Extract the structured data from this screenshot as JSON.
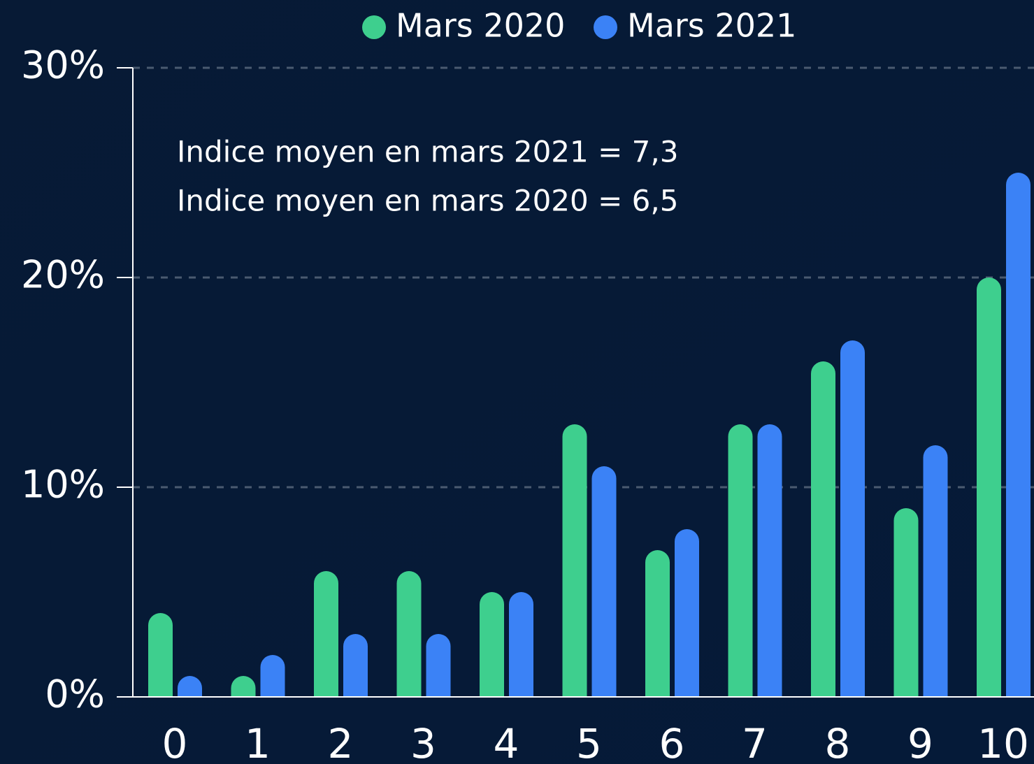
{
  "chart_data": {
    "type": "bar",
    "categories": [
      "0",
      "1",
      "2",
      "3",
      "4",
      "5",
      "6",
      "7",
      "8",
      "9",
      "10"
    ],
    "series": [
      {
        "name": "Mars 2020",
        "color": "#3ecf8e",
        "values": [
          4,
          1,
          6,
          6,
          5,
          13,
          7,
          13,
          16,
          9,
          20
        ]
      },
      {
        "name": "Mars 2021",
        "color": "#3b82f6",
        "values": [
          1,
          2,
          3,
          3,
          5,
          11,
          8,
          13,
          17,
          12,
          25
        ]
      }
    ],
    "ylim": [
      0,
      30
    ],
    "yticks": [
      {
        "value": 0,
        "label": "0%"
      },
      {
        "value": 10,
        "label": "10%"
      },
      {
        "value": 20,
        "label": "20%"
      },
      {
        "value": 30,
        "label": "30%"
      }
    ],
    "grid": true,
    "legend": "top",
    "annotations": [
      "Indice moyen en mars 2021 = 7,3",
      "Indice moyen en mars 2020 = 6,5"
    ]
  }
}
